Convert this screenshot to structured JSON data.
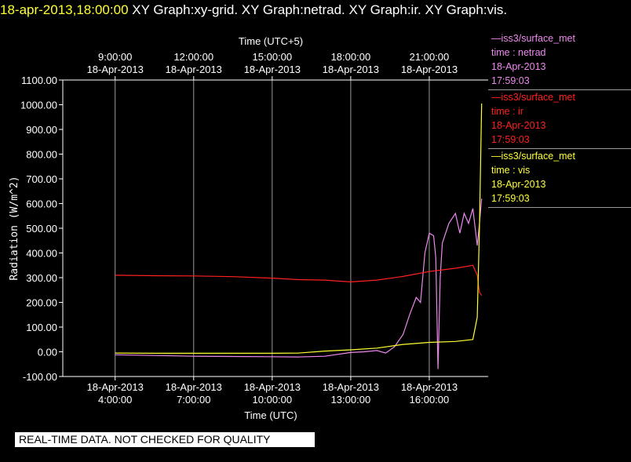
{
  "header": {
    "timestamp": "18-apr-2013,18:00:00",
    "graphs": "  XY Graph:xy-grid.  XY Graph:netrad.  XY Graph:ir.  XY Graph:vis."
  },
  "legend": [
    {
      "title": "—iss3/surface_met",
      "var": "time : netrad",
      "date": "18-Apr-2013",
      "time": "17:59:03",
      "color": "#ee88ee"
    },
    {
      "title": "—iss3/surface_met",
      "var": "time : ir",
      "date": "18-Apr-2013",
      "time": "17:59:03",
      "color": "#ff2020"
    },
    {
      "title": "—iss3/surface_met",
      "var": "time : vis",
      "date": "18-Apr-2013",
      "time": "17:59:03",
      "color": "#ffff33"
    }
  ],
  "disclaimer": "REAL-TIME DATA. NOT CHECKED FOR QUALITY",
  "chart_data": {
    "type": "line",
    "title": "",
    "xlabel": "Time (UTC)",
    "x2label": "Time (UTC+5)",
    "ylabel": "Radiation (W/m^2)",
    "xlim": [
      "18-Apr-2013 02:00:00",
      "18-Apr-2013 18:15:00"
    ],
    "ylim": [
      -100,
      1100
    ],
    "yticks": [
      "-100.00",
      "0.00",
      "100.00",
      "200.00",
      "300.00",
      "400.00",
      "500.00",
      "600.00",
      "700.00",
      "800.00",
      "900.00",
      "1000.00",
      "1100.00"
    ],
    "xticks_bottom": [
      {
        "date": "18-Apr-2013",
        "time": "4:00:00",
        "at": "18-Apr-2013 04:00:00"
      },
      {
        "date": "18-Apr-2013",
        "time": "7:00:00",
        "at": "18-Apr-2013 07:00:00"
      },
      {
        "date": "18-Apr-2013",
        "time": "10:00:00",
        "at": "18-Apr-2013 10:00:00"
      },
      {
        "date": "18-Apr-2013",
        "time": "13:00:00",
        "at": "18-Apr-2013 13:00:00"
      },
      {
        "date": "18-Apr-2013",
        "time": "16:00:00",
        "at": "18-Apr-2013 16:00:00"
      }
    ],
    "xticks_top": [
      {
        "date": "18-Apr-2013",
        "time": "9:00:00",
        "at": "18-Apr-2013 04:00:00"
      },
      {
        "date": "18-Apr-2013",
        "time": "12:00:00",
        "at": "18-Apr-2013 07:00:00"
      },
      {
        "date": "18-Apr-2013",
        "time": "15:00:00",
        "at": "18-Apr-2013 10:00:00"
      },
      {
        "date": "18-Apr-2013",
        "time": "18:00:00",
        "at": "18-Apr-2013 13:00:00"
      },
      {
        "date": "18-Apr-2013",
        "time": "21:00:00",
        "at": "18-Apr-2013 16:00:00"
      }
    ],
    "grid": "vertical",
    "series": [
      {
        "key": "netrad",
        "color": "#ee88ee",
        "points": [
          [
            "18-Apr-2013 04:00:00",
            -12
          ],
          [
            "18-Apr-2013 05:30:00",
            -15
          ],
          [
            "18-Apr-2013 07:00:00",
            -18
          ],
          [
            "18-Apr-2013 08:30:00",
            -19
          ],
          [
            "18-Apr-2013 10:00:00",
            -20
          ],
          [
            "18-Apr-2013 11:00:00",
            -21
          ],
          [
            "18-Apr-2013 12:00:00",
            -18
          ],
          [
            "18-Apr-2013 13:00:00",
            -3
          ],
          [
            "18-Apr-2013 13:30:00",
            0
          ],
          [
            "18-Apr-2013 14:00:00",
            5
          ],
          [
            "18-Apr-2013 14:20:00",
            -5
          ],
          [
            "18-Apr-2013 14:40:00",
            20
          ],
          [
            "18-Apr-2013 15:00:00",
            70
          ],
          [
            "18-Apr-2013 15:15:00",
            150
          ],
          [
            "18-Apr-2013 15:30:00",
            220
          ],
          [
            "18-Apr-2013 15:40:00",
            200
          ],
          [
            "18-Apr-2013 15:50:00",
            400
          ],
          [
            "18-Apr-2013 16:00:00",
            480
          ],
          [
            "18-Apr-2013 16:10:00",
            470
          ],
          [
            "18-Apr-2013 16:15:00",
            380
          ],
          [
            "18-Apr-2013 16:20:00",
            -70
          ],
          [
            "18-Apr-2013 16:25:00",
            300
          ],
          [
            "18-Apr-2013 16:30:00",
            440
          ],
          [
            "18-Apr-2013 16:45:00",
            520
          ],
          [
            "18-Apr-2013 17:00:00",
            560
          ],
          [
            "18-Apr-2013 17:10:00",
            480
          ],
          [
            "18-Apr-2013 17:20:00",
            560
          ],
          [
            "18-Apr-2013 17:30:00",
            520
          ],
          [
            "18-Apr-2013 17:40:00",
            580
          ],
          [
            "18-Apr-2013 17:50:00",
            430
          ],
          [
            "18-Apr-2013 17:55:00",
            520
          ],
          [
            "18-Apr-2013 18:00:00",
            620
          ]
        ]
      },
      {
        "key": "ir",
        "color": "#ff2020",
        "points": [
          [
            "18-Apr-2013 04:00:00",
            310
          ],
          [
            "18-Apr-2013 05:30:00",
            308
          ],
          [
            "18-Apr-2013 07:00:00",
            307
          ],
          [
            "18-Apr-2013 08:30:00",
            304
          ],
          [
            "18-Apr-2013 10:00:00",
            298
          ],
          [
            "18-Apr-2013 11:00:00",
            292
          ],
          [
            "18-Apr-2013 12:00:00",
            290
          ],
          [
            "18-Apr-2013 13:00:00",
            283
          ],
          [
            "18-Apr-2013 14:00:00",
            290
          ],
          [
            "18-Apr-2013 15:00:00",
            305
          ],
          [
            "18-Apr-2013 16:00:00",
            325
          ],
          [
            "18-Apr-2013 17:00:00",
            338
          ],
          [
            "18-Apr-2013 17:40:00",
            350
          ],
          [
            "18-Apr-2013 17:50:00",
            310
          ],
          [
            "18-Apr-2013 17:55:00",
            240
          ],
          [
            "18-Apr-2013 18:00:00",
            228
          ]
        ]
      },
      {
        "key": "vis",
        "color": "#ffff33",
        "points": [
          [
            "18-Apr-2013 04:00:00",
            -5
          ],
          [
            "18-Apr-2013 05:30:00",
            -6
          ],
          [
            "18-Apr-2013 07:00:00",
            -6
          ],
          [
            "18-Apr-2013 08:30:00",
            -6
          ],
          [
            "18-Apr-2013 10:00:00",
            -6
          ],
          [
            "18-Apr-2013 11:00:00",
            -5
          ],
          [
            "18-Apr-2013 12:00:00",
            3
          ],
          [
            "18-Apr-2013 13:00:00",
            8
          ],
          [
            "18-Apr-2013 14:00:00",
            15
          ],
          [
            "18-Apr-2013 15:00:00",
            30
          ],
          [
            "18-Apr-2013 16:00:00",
            38
          ],
          [
            "18-Apr-2013 17:00:00",
            42
          ],
          [
            "18-Apr-2013 17:40:00",
            50
          ],
          [
            "18-Apr-2013 17:50:00",
            140
          ],
          [
            "18-Apr-2013 17:55:00",
            500
          ],
          [
            "18-Apr-2013 18:00:00",
            1005
          ]
        ]
      }
    ]
  }
}
